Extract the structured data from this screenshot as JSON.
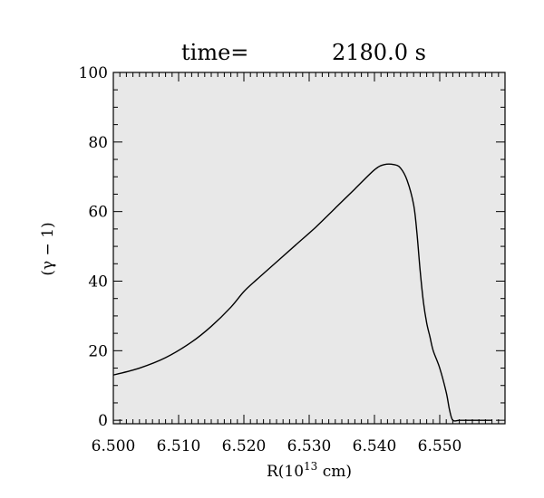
{
  "chart_data": {
    "type": "line",
    "title_prefix": "time=",
    "title_value": "2180.0 s",
    "xlabel": "R(10^13 cm)",
    "xlabel_base": "R(10",
    "xlabel_exp": "13",
    "xlabel_unit": " cm)",
    "ylabel": "(γ − 1)",
    "xlim": [
      6.5,
      6.56
    ],
    "ylim": [
      -1,
      100
    ],
    "xticks": [
      "6.500",
      "6.510",
      "6.520",
      "6.530",
      "6.540",
      "6.550"
    ],
    "xtick_values": [
      6.5,
      6.51,
      6.52,
      6.53,
      6.54,
      6.55
    ],
    "yticks": [
      "0",
      "20",
      "40",
      "60",
      "80",
      "100"
    ],
    "ytick_values": [
      0,
      20,
      40,
      60,
      80,
      100
    ],
    "grid": false,
    "plot_background": "#e8e8e8",
    "line_color": "#000000",
    "series": [
      {
        "x": [
          6.5,
          6.504,
          6.508,
          6.512,
          6.515,
          6.518,
          6.52,
          6.522,
          6.525,
          6.528,
          6.531,
          6.534,
          6.537,
          6.54,
          6.5415,
          6.543,
          6.544,
          6.545,
          6.546,
          6.5465,
          6.547,
          6.5475,
          6.548,
          6.5485,
          6.549,
          6.55,
          6.551,
          6.5515,
          6.552,
          6.553,
          6.554,
          6.555,
          6.556,
          6.557,
          6.558
        ],
        "y": [
          13,
          15,
          18,
          22.5,
          27,
          32.5,
          37,
          40.5,
          45.5,
          50.5,
          55.5,
          61,
          66.5,
          72,
          73.5,
          73.5,
          72.5,
          69,
          62,
          54,
          43,
          34,
          28,
          24,
          20,
          15,
          8,
          3,
          0,
          0,
          0,
          0,
          0,
          0,
          0
        ]
      }
    ]
  }
}
